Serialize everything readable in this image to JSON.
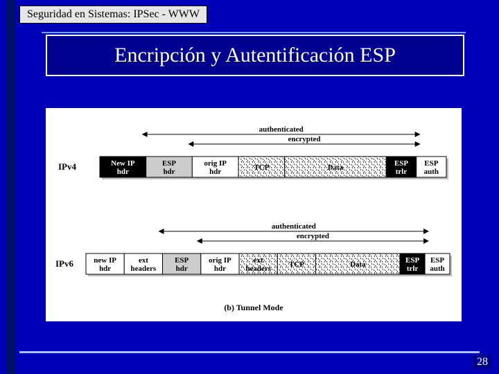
{
  "breadcrumb": "Seguridad en Sistemas: IPSec - WWW",
  "title": "Encripción y Autentificación ESP",
  "pageNumber": "28",
  "caption": "(b) Tunnel Mode",
  "spans": {
    "auth": "authenticated",
    "enc": "encrypted"
  },
  "colors": {
    "slideBg": "#0000b8",
    "titleBg": "#000090",
    "white": "#ffffff",
    "grey": "#cccccc",
    "black": "#000000"
  },
  "diagram": {
    "ipv4": {
      "rowLabel": "IPv4",
      "boxes": [
        {
          "label1": "New IP",
          "label2": "hdr",
          "fill": "#000000",
          "text": "#ffffff"
        },
        {
          "label1": "ESP",
          "label2": "hdr",
          "fill": "#cccccc",
          "text": "#000000"
        },
        {
          "label1": "orig IP",
          "label2": "hdr",
          "fill": "#ffffff",
          "text": "#000000"
        },
        {
          "label1": "TCP",
          "label2": "",
          "fill": "hatch",
          "text": "#000000"
        },
        {
          "label1": "Data",
          "label2": "",
          "fill": "hatch",
          "text": "#000000",
          "wide": true
        },
        {
          "label1": "ESP",
          "label2": "trlr",
          "fill": "#000000",
          "text": "#ffffff",
          "narrow": true
        },
        {
          "label1": "ESP",
          "label2": "auth",
          "fill": "#ffffff",
          "text": "#000000",
          "narrow": true
        }
      ]
    },
    "ipv6": {
      "rowLabel": "IPv6",
      "boxes": [
        {
          "label1": "new IP",
          "label2": "hdr",
          "fill": "#ffffff",
          "text": "#000000"
        },
        {
          "label1": "ext",
          "label2": "headers",
          "fill": "#ffffff",
          "text": "#000000"
        },
        {
          "label1": "ESP",
          "label2": "hdr",
          "fill": "#cccccc",
          "text": "#000000"
        },
        {
          "label1": "orig IP",
          "label2": "hdr",
          "fill": "#ffffff",
          "text": "#000000"
        },
        {
          "label1": "ext",
          "label2": "headers",
          "fill": "hatch",
          "text": "#000000"
        },
        {
          "label1": "TCP",
          "label2": "",
          "fill": "hatch",
          "text": "#000000"
        },
        {
          "label1": "Data",
          "label2": "",
          "fill": "hatch",
          "text": "#000000",
          "wide": true
        },
        {
          "label1": "ESP",
          "label2": "trlr",
          "fill": "#000000",
          "text": "#ffffff",
          "narrow": true
        },
        {
          "label1": "ESP",
          "label2": "auth",
          "fill": "#ffffff",
          "text": "#000000",
          "narrow": true
        }
      ]
    }
  }
}
